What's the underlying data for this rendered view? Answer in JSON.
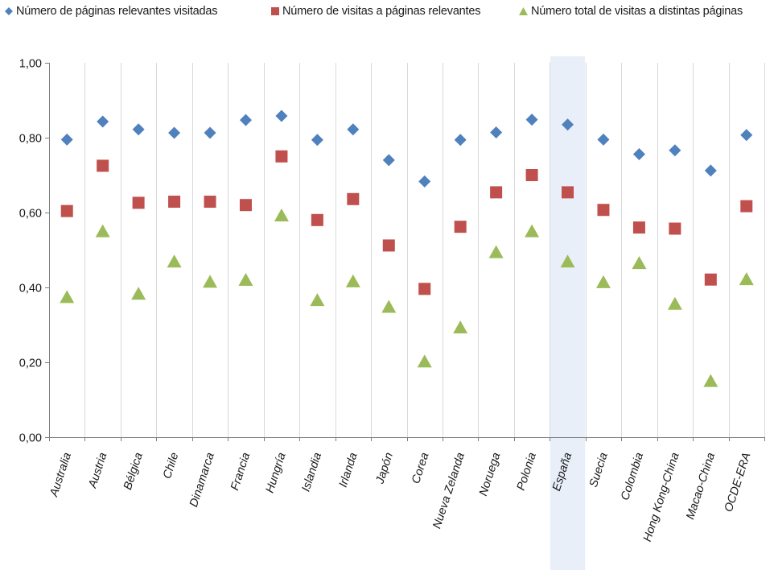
{
  "chart_data": {
    "type": "scatter",
    "categories": [
      "Australia",
      "Austria",
      "Bélgica",
      "Chile",
      "Dinamarca",
      "Francia",
      "Hungría",
      "Islandia",
      "Irlanda",
      "Japón",
      "Corea",
      "Nueva Zelanda",
      "Noruega",
      "Polonia",
      "España",
      "Suecia",
      "Colombia",
      "Hong Kong-China",
      "Macao-China",
      "OCDE-ERA"
    ],
    "series": [
      {
        "name": "Número de páginas relevantes visitadas",
        "marker": "diamond",
        "color": "#4f81bd",
        "values": [
          0.795,
          0.843,
          0.822,
          0.813,
          0.813,
          0.847,
          0.858,
          0.794,
          0.822,
          0.74,
          0.683,
          0.794,
          0.814,
          0.848,
          0.835,
          0.795,
          0.756,
          0.766,
          0.712,
          0.807
        ]
      },
      {
        "name": "Número de visitas a páginas relevantes",
        "marker": "square",
        "color": "#c0504d",
        "values": [
          0.604,
          0.725,
          0.626,
          0.629,
          0.629,
          0.62,
          0.75,
          0.58,
          0.636,
          0.512,
          0.396,
          0.562,
          0.654,
          0.7,
          0.654,
          0.607,
          0.56,
          0.557,
          0.421,
          0.617
        ]
      },
      {
        "name": "Número total de visitas a distintas páginas",
        "marker": "triangle",
        "color": "#9bbb59",
        "values": [
          0.372,
          0.548,
          0.381,
          0.467,
          0.413,
          0.418,
          0.59,
          0.364,
          0.414,
          0.346,
          0.2,
          0.291,
          0.492,
          0.548,
          0.467,
          0.412,
          0.463,
          0.354,
          0.148,
          0.42
        ]
      }
    ],
    "ylim": [
      0,
      1
    ],
    "yticks": [
      "0,00",
      "0,20",
      "0,40",
      "0,60",
      "0,80",
      "1,00"
    ],
    "ytick_values": [
      0,
      0.2,
      0.4,
      0.6,
      0.8,
      1.0
    ],
    "highlight_category": "España",
    "highlight_color": "#e9eff8",
    "grid": "vertical",
    "legend_position": "top"
  }
}
